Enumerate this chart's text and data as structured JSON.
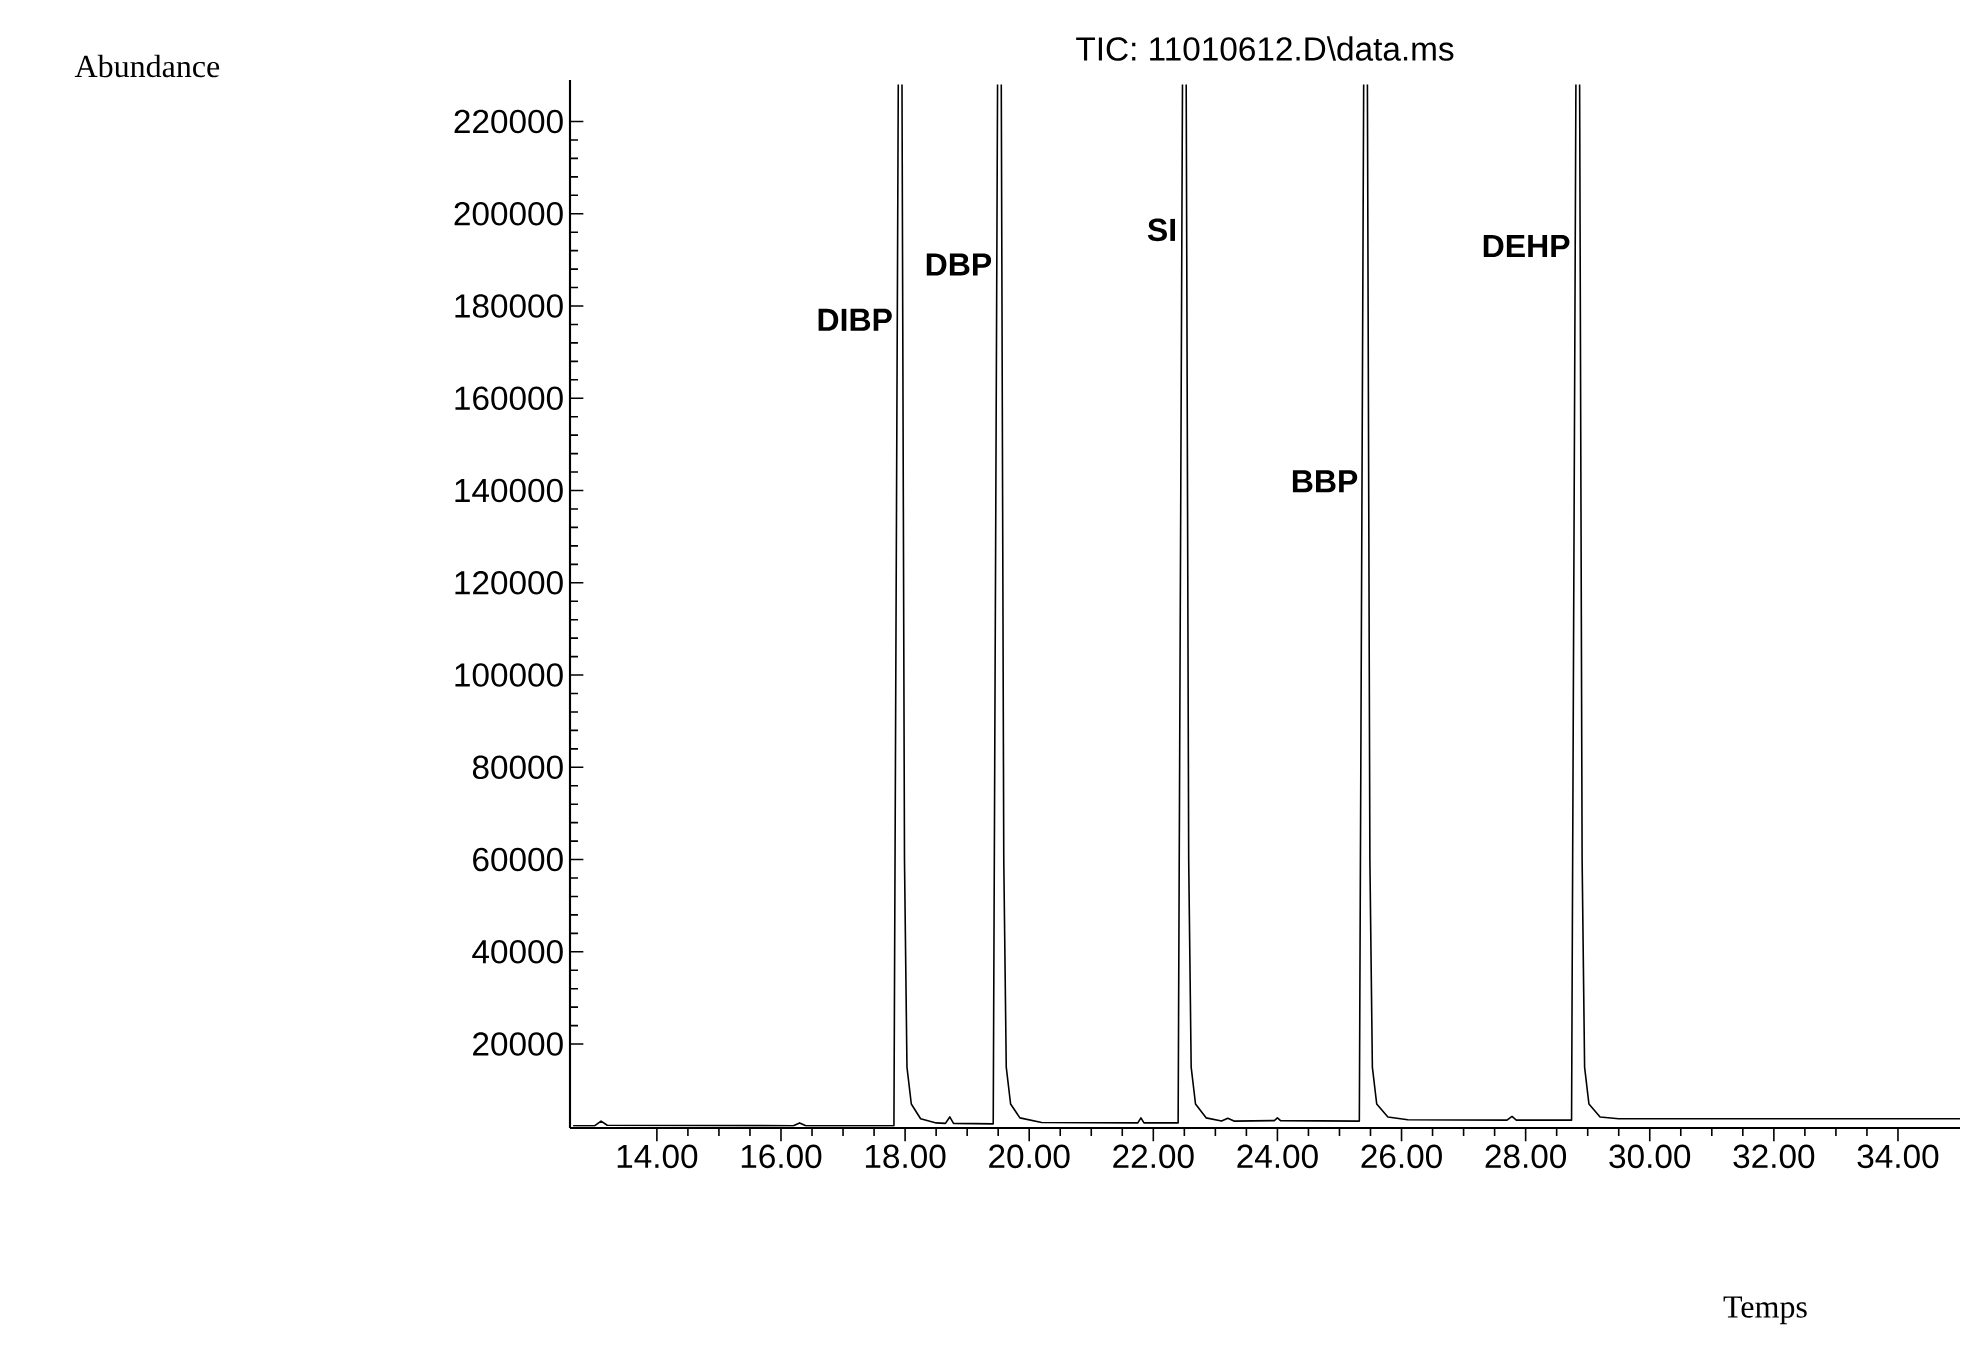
{
  "chart_data": {
    "type": "line",
    "title": "TIC: 11010612.D\\data.ms",
    "xlabel": "Temps",
    "color": "#000000",
    "xlim": [
      12.6,
      35.0
    ],
    "ylim": [
      1800,
      229000
    ],
    "xticks": [
      {
        "value": 14,
        "label": "14.00"
      },
      {
        "value": 16,
        "label": "16.00"
      },
      {
        "value": 18,
        "label": "18.00"
      },
      {
        "value": 20,
        "label": "20.00"
      },
      {
        "value": 22,
        "label": "22.00"
      },
      {
        "value": 24,
        "label": "24.00"
      },
      {
        "value": 26,
        "label": "26.00"
      },
      {
        "value": 28,
        "label": "28.00"
      },
      {
        "value": 30,
        "label": "30.00"
      },
      {
        "value": 32,
        "label": "32.00"
      },
      {
        "value": 34,
        "label": "34.00"
      }
    ],
    "yticks": [
      20000,
      40000,
      60000,
      80000,
      100000,
      120000,
      140000,
      160000,
      180000,
      200000,
      220000
    ],
    "x": [
      12.65,
      13.0,
      13.1,
      13.2,
      16.2,
      16.3,
      16.4,
      17.82,
      17.89,
      17.92,
      17.95,
      17.99,
      18.03,
      18.1,
      18.25,
      18.5,
      18.65,
      18.72,
      18.78,
      19.42,
      19.49,
      19.52,
      19.55,
      19.59,
      19.63,
      19.7,
      19.85,
      20.2,
      21.75,
      21.8,
      21.85,
      22.4,
      22.47,
      22.5,
      22.53,
      22.57,
      22.61,
      22.68,
      22.85,
      23.1,
      23.2,
      23.3,
      23.95,
      24.0,
      24.05,
      25.32,
      25.39,
      25.42,
      25.45,
      25.49,
      25.53,
      25.6,
      25.78,
      26.1,
      27.7,
      27.78,
      27.85,
      28.74,
      28.81,
      28.84,
      28.87,
      28.91,
      28.95,
      29.02,
      29.2,
      29.5,
      35.0
    ],
    "values": [
      2300,
      2300,
      3300,
      2400,
      2300,
      2900,
      2300,
      2300,
      228000,
      null,
      228000,
      60000,
      15000,
      7000,
      3800,
      2900,
      2800,
      4200,
      2800,
      2700,
      228000,
      null,
      228000,
      60000,
      15000,
      7000,
      4000,
      3000,
      2900,
      4000,
      2900,
      2900,
      228000,
      null,
      228000,
      60000,
      15000,
      7000,
      4000,
      3300,
      3900,
      3300,
      3400,
      4000,
      3400,
      3300,
      228000,
      null,
      228000,
      60000,
      15000,
      7000,
      4200,
      3600,
      3500,
      4300,
      3500,
      3500,
      228000,
      null,
      228000,
      60000,
      15000,
      7000,
      4200,
      3800,
      3800
    ],
    "annotations": [
      "Abundance",
      {
        "text": "DIBP",
        "x": 17.92,
        "y": 177000
      },
      {
        "text": "DBP",
        "x": 19.52,
        "y": 189000
      },
      {
        "text": "SI",
        "x": 22.5,
        "y": 196500
      },
      {
        "text": "BBP",
        "x": 25.42,
        "y": 142000
      },
      {
        "text": "DEHP",
        "x": 28.84,
        "y": 193000
      }
    ]
  }
}
